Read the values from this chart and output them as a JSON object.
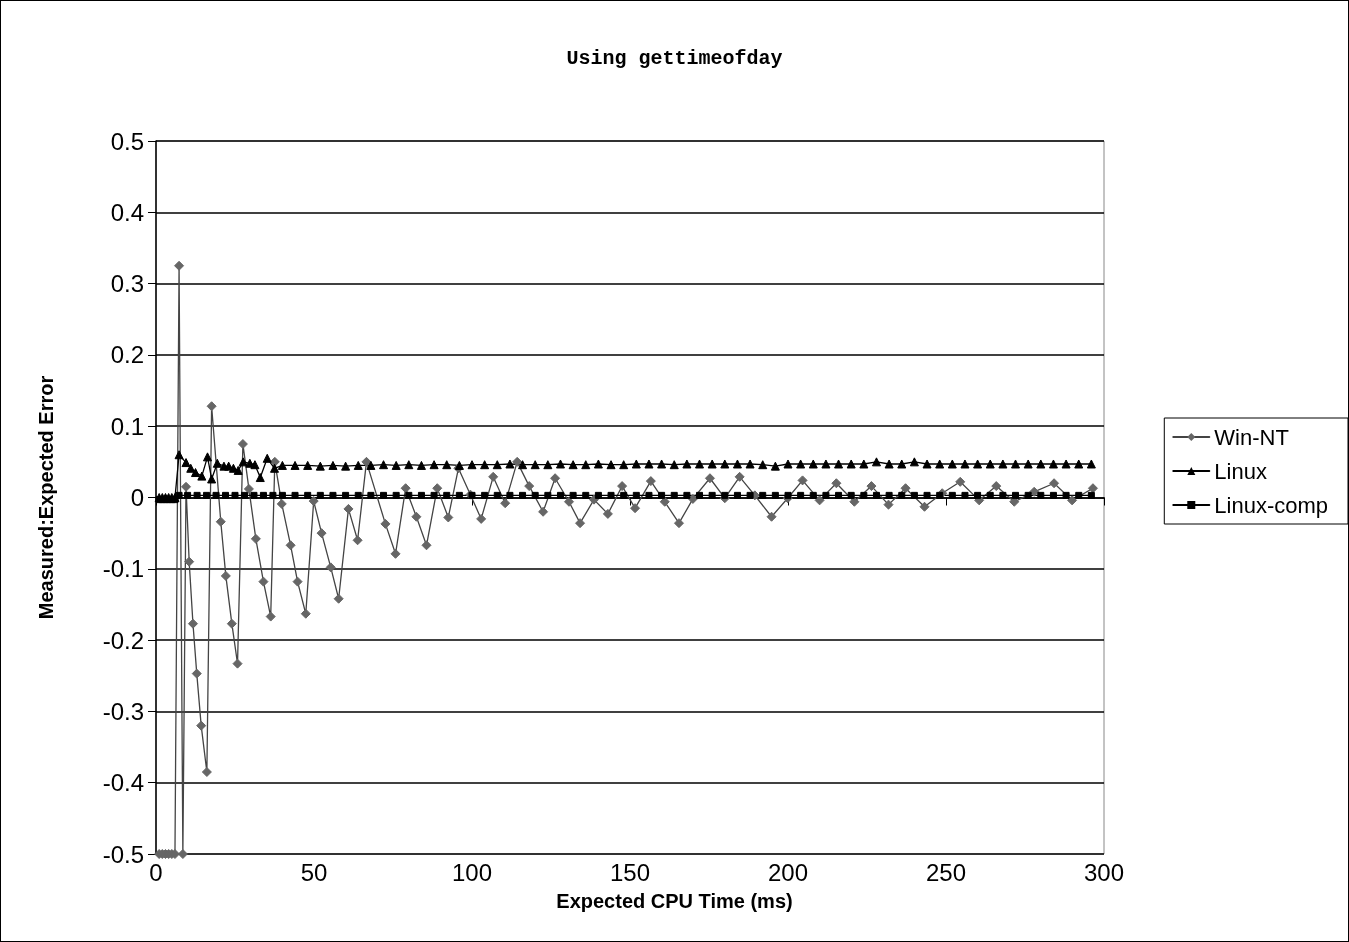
{
  "chart_data": {
    "type": "line",
    "title": "Using gettimeofday",
    "xlabel": "Expected CPU Time (ms)",
    "ylabel": "Measured:Expected Error",
    "xlim": [
      0,
      300
    ],
    "xticks": [
      0,
      50,
      100,
      150,
      200,
      250,
      300
    ],
    "ylim": [
      -0.5,
      0.5
    ],
    "yticks": [
      -0.5,
      -0.4,
      -0.3,
      -0.2,
      -0.1,
      0,
      0.1,
      0.2,
      0.3,
      0.4,
      0.5
    ],
    "grid": "y",
    "legend": "right",
    "line_style": "solid",
    "series": [
      {
        "name": "Win-NT",
        "color": "#666666",
        "marker": "diamond",
        "x": [
          1,
          2,
          3,
          4,
          5,
          6,
          7.3,
          8.5,
          9.5,
          10.5,
          11.7,
          12.9,
          14.3,
          16.1,
          17.6,
          20.5,
          22.1,
          24,
          25.8,
          27.5,
          29.4,
          31.6,
          34,
          36.3,
          37.6,
          39.8,
          42.6,
          44.8,
          47.4,
          49.9,
          52.4,
          55.3,
          57.8,
          60.9,
          63.8,
          66.6,
          72.6,
          75.8,
          79,
          82.4,
          85.6,
          89,
          92.5,
          95.7,
          99.5,
          102.9,
          106.7,
          110.5,
          114.3,
          118.1,
          122.5,
          126.3,
          130.7,
          134.2,
          138.6,
          143,
          147.5,
          151.6,
          156.6,
          161,
          165.5,
          169.9,
          175.3,
          180,
          184.7,
          189.5,
          194.8,
          199.9,
          204.6,
          210,
          215.3,
          221,
          226.4,
          231.8,
          237.2,
          243.2,
          248.8,
          254.5,
          260.5,
          265.9,
          271.6,
          277.9,
          284.2,
          289.9,
          296.5
        ],
        "values": [
          -0.5,
          -0.5,
          -0.5,
          -0.5,
          -0.5,
          -0.5,
          0.325,
          -0.5,
          0.015,
          -0.09,
          -0.177,
          -0.247,
          -0.32,
          -0.385,
          0.128,
          -0.034,
          -0.11,
          -0.177,
          -0.233,
          0.075,
          0.012,
          -0.058,
          -0.118,
          -0.167,
          0.05,
          -0.009,
          -0.067,
          -0.118,
          -0.163,
          -0.005,
          -0.05,
          -0.098,
          -0.142,
          -0.016,
          -0.06,
          0.05,
          -0.037,
          -0.079,
          0.013,
          -0.027,
          -0.067,
          0.013,
          -0.028,
          0.041,
          0.004,
          -0.03,
          0.029,
          -0.008,
          0.05,
          0.016,
          -0.02,
          0.027,
          -0.006,
          -0.036,
          -0.003,
          -0.023,
          0.016,
          -0.015,
          0.023,
          -0.006,
          -0.036,
          -0.002,
          0.027,
          -0.001,
          0.029,
          0.003,
          -0.027,
          -0.001,
          0.024,
          -0.004,
          0.02,
          -0.006,
          0.016,
          -0.01,
          0.013,
          -0.013,
          0.006,
          0.022,
          -0.004,
          0.016,
          -0.006,
          0.008,
          0.02,
          -0.004,
          0.013
        ]
      },
      {
        "name": "Linux",
        "color": "#000000",
        "marker": "triangle",
        "x": [
          1,
          2,
          3,
          4,
          5,
          6,
          7.3,
          9.5,
          11,
          12.5,
          14.5,
          16.3,
          17.6,
          19.4,
          21.5,
          23,
          24.5,
          26,
          27.6,
          29.7,
          31.3,
          33,
          35.2,
          37.5,
          40,
          44,
          48,
          52,
          56,
          60,
          64,
          68,
          72,
          76,
          80,
          84,
          88,
          92,
          96,
          100,
          104,
          108,
          112,
          116,
          120,
          124,
          128,
          132,
          136,
          140,
          144,
          148,
          152,
          156,
          160,
          164,
          168,
          172,
          176,
          180,
          184,
          188,
          192,
          196,
          200,
          204,
          208,
          212,
          216,
          220,
          224,
          228,
          232,
          236,
          240,
          244,
          248,
          252,
          256,
          260,
          264,
          268,
          272,
          276,
          280,
          284,
          288,
          292,
          296
        ],
        "values": [
          0,
          0,
          0,
          0,
          0,
          0,
          0.06,
          0.049,
          0.041,
          0.035,
          0.03,
          0.057,
          0.026,
          0.048,
          0.044,
          0.044,
          0.041,
          0.038,
          0.05,
          0.048,
          0.046,
          0.028,
          0.055,
          0.041,
          0.045,
          0.045,
          0.045,
          0.044,
          0.045,
          0.044,
          0.045,
          0.045,
          0.046,
          0.045,
          0.046,
          0.045,
          0.046,
          0.046,
          0.045,
          0.046,
          0.046,
          0.046,
          0.047,
          0.046,
          0.046,
          0.046,
          0.047,
          0.046,
          0.046,
          0.047,
          0.046,
          0.046,
          0.047,
          0.047,
          0.047,
          0.046,
          0.047,
          0.047,
          0.047,
          0.047,
          0.047,
          0.047,
          0.046,
          0.044,
          0.047,
          0.047,
          0.047,
          0.047,
          0.047,
          0.047,
          0.047,
          0.05,
          0.047,
          0.047,
          0.05,
          0.047,
          0.047,
          0.047,
          0.047,
          0.047,
          0.047,
          0.047,
          0.047,
          0.047,
          0.047,
          0.047,
          0.047,
          0.047,
          0.047
        ]
      },
      {
        "name": "Linux-comp",
        "color": "#000000",
        "marker": "square",
        "x": [
          1,
          2,
          3,
          4,
          5,
          6,
          7.3,
          10,
          13,
          16,
          19,
          22,
          25,
          28,
          31,
          34,
          37,
          40,
          44,
          48,
          52,
          56,
          60,
          64,
          68,
          72,
          76,
          80,
          84,
          88,
          92,
          96,
          100,
          104,
          108,
          112,
          116,
          120,
          124,
          128,
          132,
          136,
          140,
          144,
          148,
          152,
          156,
          160,
          164,
          168,
          172,
          176,
          180,
          184,
          188,
          192,
          196,
          200,
          204,
          208,
          212,
          216,
          220,
          224,
          228,
          232,
          236,
          240,
          244,
          248,
          252,
          256,
          260,
          264,
          268,
          272,
          276,
          280,
          284,
          288,
          292,
          296
        ],
        "values": [
          -0.003,
          -0.003,
          -0.003,
          -0.003,
          -0.003,
          -0.003,
          0.003,
          0.003,
          0.003,
          0.003,
          0.003,
          0.003,
          0.003,
          0.003,
          0.003,
          0.003,
          0.003,
          0.003,
          0.003,
          0.003,
          0.003,
          0.003,
          0.003,
          0.003,
          0.003,
          0.003,
          0.003,
          0.003,
          0.003,
          0.003,
          0.003,
          0.003,
          0.003,
          0.003,
          0.003,
          0.003,
          0.003,
          0.003,
          0.003,
          0.003,
          0.003,
          0.003,
          0.003,
          0.003,
          0.003,
          0.003,
          0.003,
          0.003,
          0.003,
          0.003,
          0.003,
          0.003,
          0.003,
          0.003,
          0.003,
          0.003,
          0.003,
          0.003,
          0.003,
          0.003,
          0.003,
          0.003,
          0.003,
          0.003,
          0.003,
          0.003,
          0.003,
          0.003,
          0.003,
          0.003,
          0.003,
          0.003,
          0.003,
          0.003,
          0.003,
          0.003,
          0.003,
          0.003,
          0.003,
          0.003,
          0.003,
          0.003
        ]
      }
    ]
  }
}
